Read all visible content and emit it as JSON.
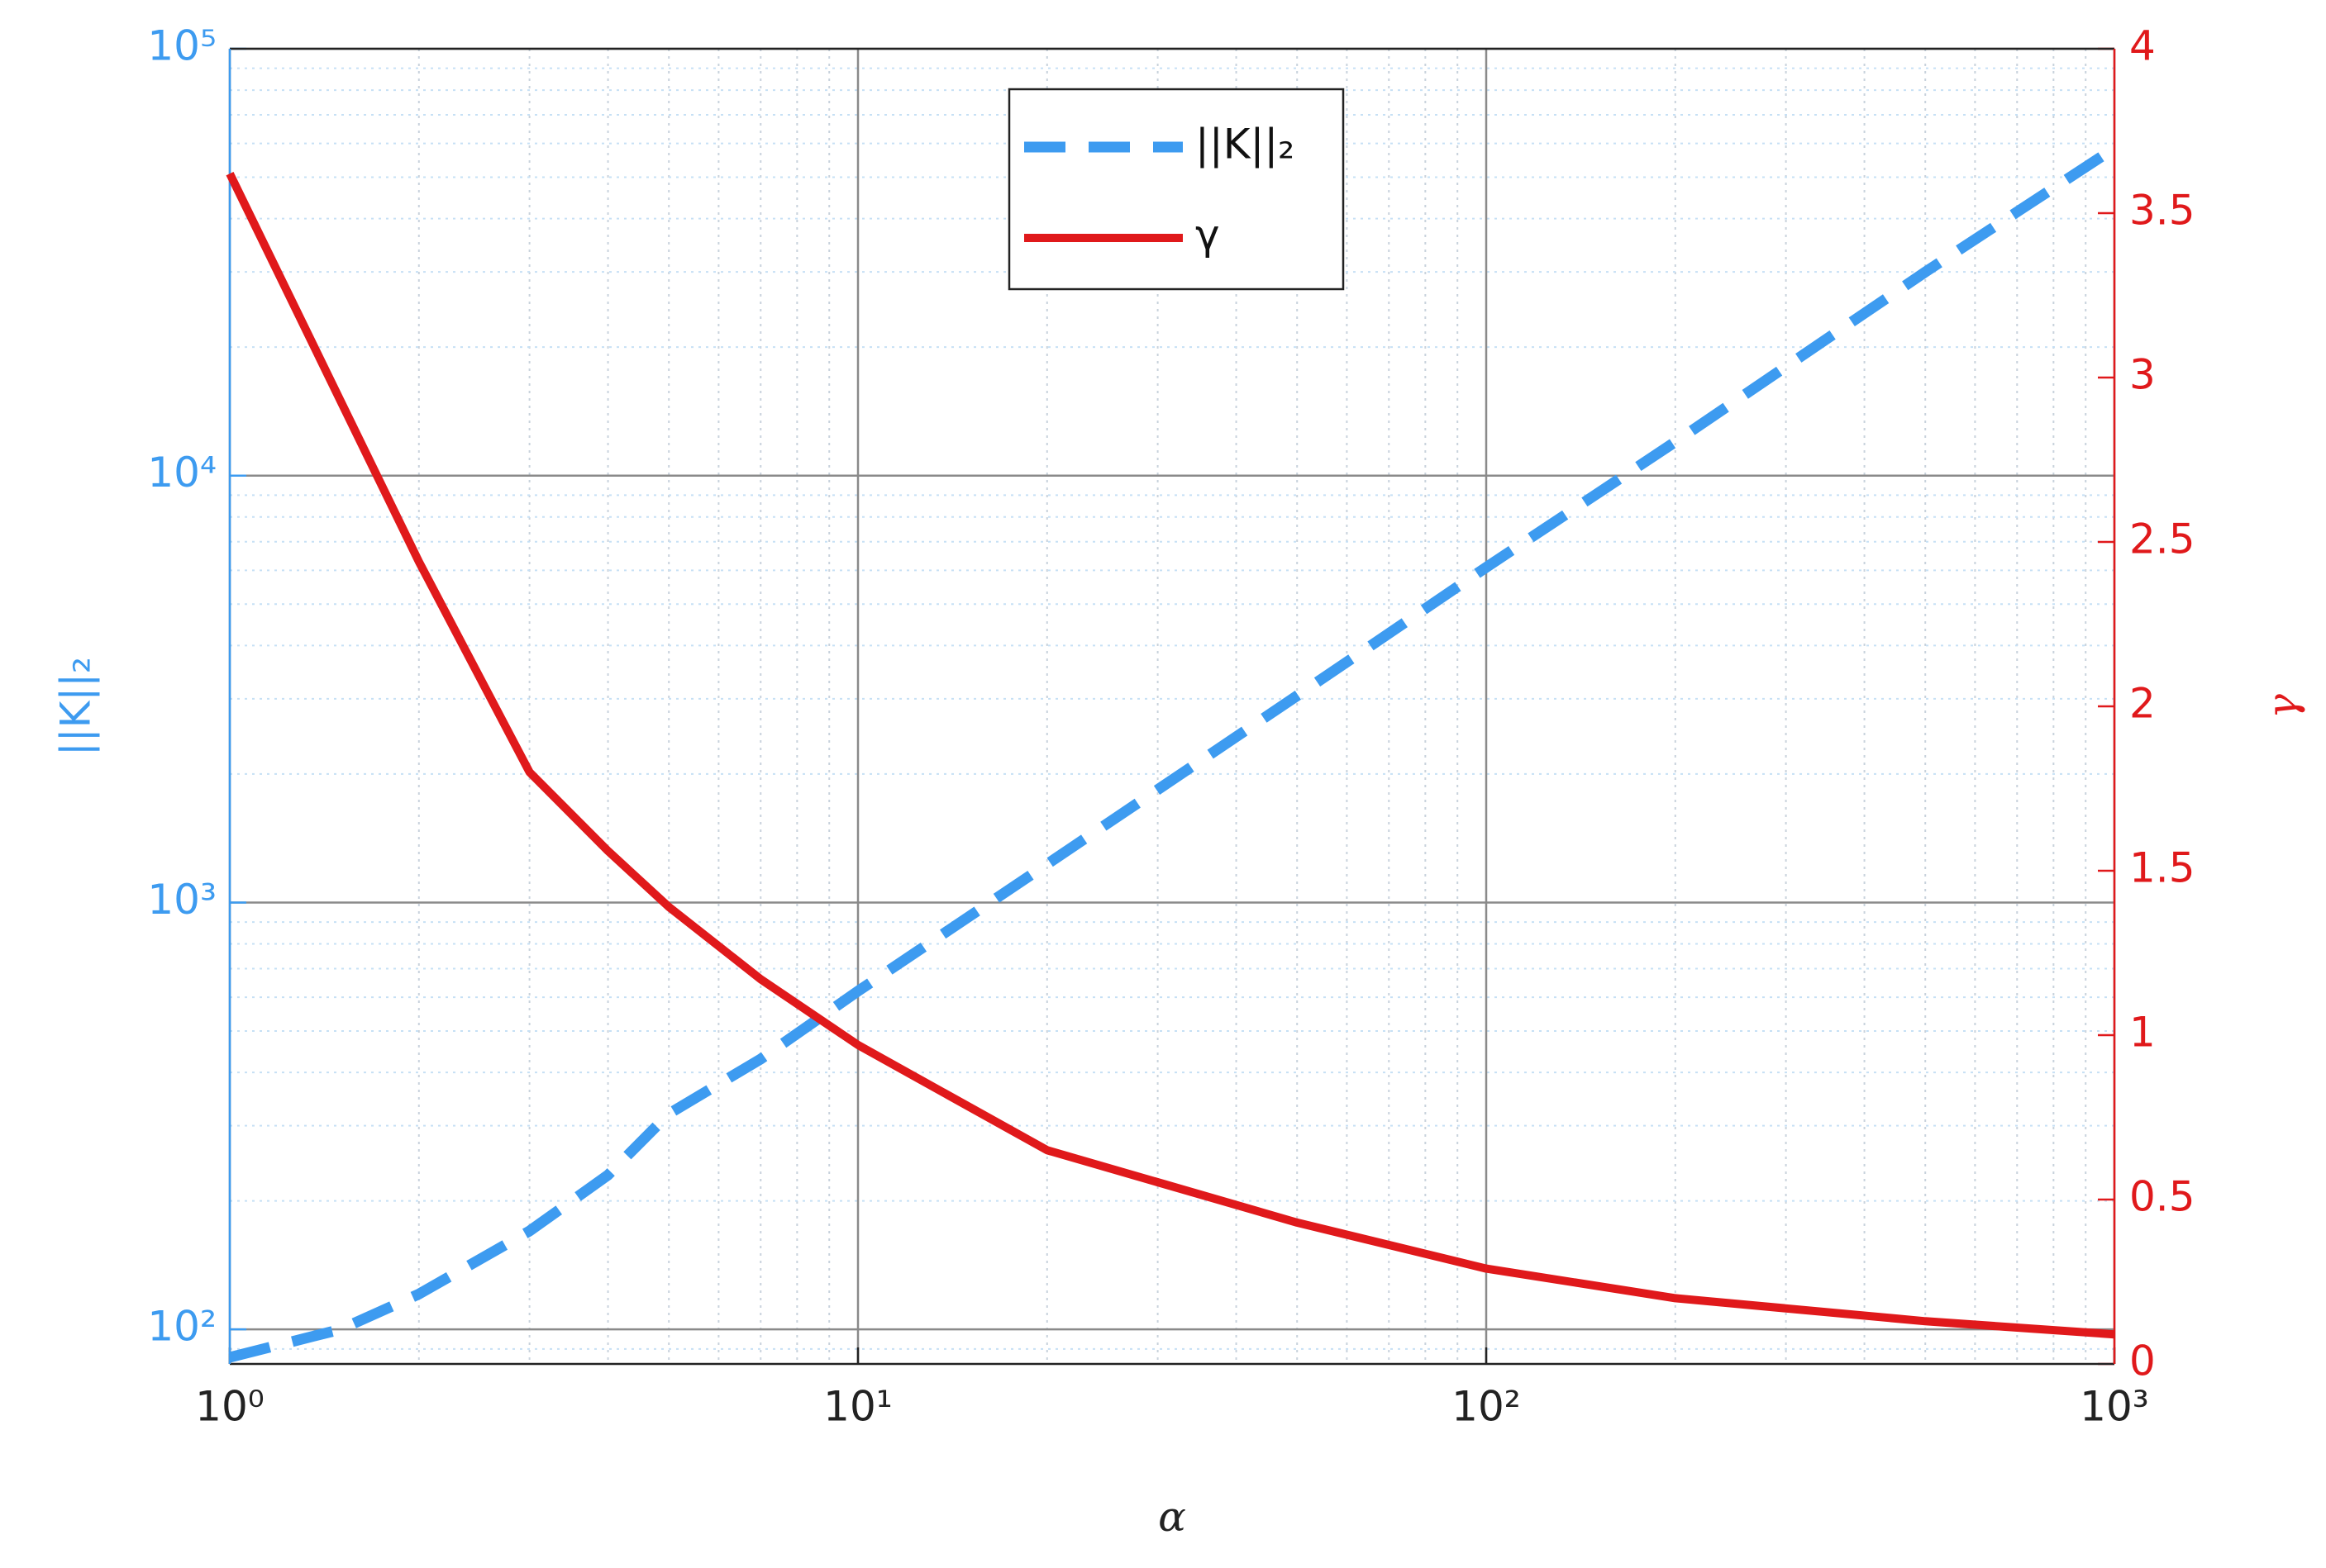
{
  "chart_data": {
    "type": "line",
    "x_label": "α",
    "y_label": "||K||₂",
    "y2_label": "γ",
    "x": [
      1,
      1.5,
      2,
      3,
      4,
      5,
      7,
      10,
      20,
      50,
      100,
      200,
      500,
      1000
    ],
    "series": [
      {
        "name": "||K||₂",
        "color": "#3d9bf0",
        "dash": true,
        "values": [
          86,
          100,
          121,
          170,
          230,
          320,
          430,
          620,
          1230,
          3050,
          6100,
          12000,
          30000,
          58500
        ]
      },
      {
        "name": "γ",
        "color": "#e0191b",
        "axis": "y2",
        "values": [
          3.62,
          2.93,
          2.44,
          1.8,
          1.56,
          1.39,
          1.17,
          0.97,
          0.65,
          0.43,
          0.29,
          0.2,
          0.13,
          0.09
        ]
      }
    ],
    "xscale": "log",
    "yscale": "log",
    "xlim": [
      1,
      1000
    ],
    "ylim": [
      83,
      100000
    ],
    "y2lim": [
      0,
      4
    ],
    "xticks": [
      {
        "value": 1,
        "label": "10⁰"
      },
      {
        "value": 10,
        "label": "10¹"
      },
      {
        "value": 100,
        "label": "10²"
      },
      {
        "value": 1000,
        "label": "10³"
      }
    ],
    "yticks": [
      {
        "value": 100,
        "label": "10²"
      },
      {
        "value": 1000,
        "label": "10³"
      },
      {
        "value": 10000,
        "label": "10⁴"
      },
      {
        "value": 100000,
        "label": "10⁵"
      }
    ],
    "y2ticks": [
      0,
      0.5,
      1,
      1.5,
      2,
      2.5,
      3,
      3.5,
      4
    ],
    "grid": true,
    "minor_grid": true,
    "legend": "upper center"
  }
}
